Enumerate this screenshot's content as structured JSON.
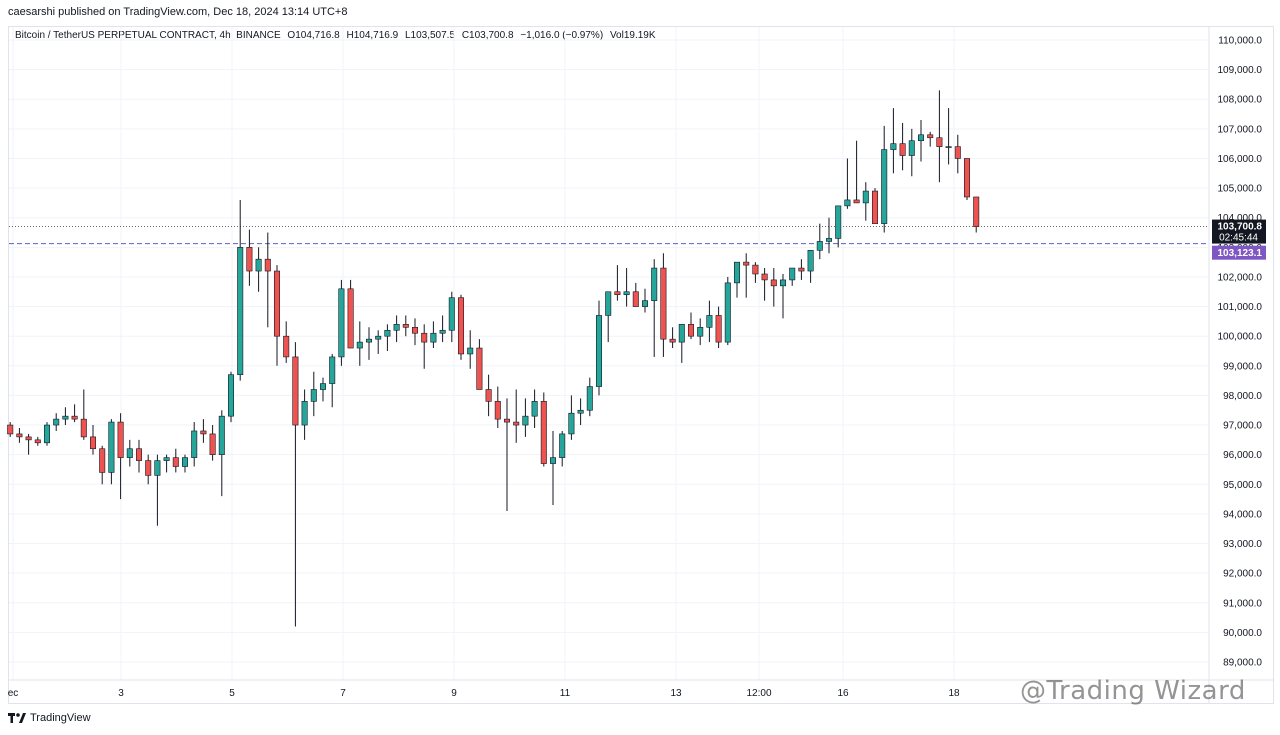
{
  "credit": "caesarshi published on TradingView.com, Dec 18, 2024 13:14 UTC+8",
  "header": {
    "symbol": "Bitcoin / TetherUS PERPETUAL CONTRACT, 4h, BINANCE",
    "open": "O104,716.8",
    "high": "H104,716.9",
    "low": "L103,507.5",
    "close": "C103,700.8",
    "change": "−1,016.0 (−0.97%)",
    "volume": "Vol19.19K"
  },
  "labels": {
    "last_price": "103,700.8",
    "countdown": "02:45:44",
    "marked_price": "103,123.1"
  },
  "colors": {
    "up": "#26a69a",
    "down": "#ef5350",
    "marked_line": "#5b5fc7",
    "marked_label": "#7e57c2",
    "last_label": "#131722"
  },
  "footer": {
    "brand": "TradingView"
  },
  "watermark": "@Trading Wizard",
  "chart_data": {
    "type": "candlestick",
    "title": "Bitcoin / TetherUS PERPETUAL CONTRACT, 4h, BINANCE",
    "ylim": [
      88500,
      110500
    ],
    "y_ticks": [
      "110,000.0",
      "109,000.0",
      "108,000.0",
      "107,000.0",
      "106,000.0",
      "105,000.0",
      "104,000.0",
      "103,000.0",
      "102,000.0",
      "101,000.0",
      "100,000.0",
      "99,000.0",
      "98,000.0",
      "97,000.0",
      "96,000.0",
      "95,000.0",
      "94,000.0",
      "93,000.0",
      "92,000.0",
      "91,000.0",
      "90,000.0",
      "89,000.0"
    ],
    "x_ticks": [
      "ec",
      "3",
      "5",
      "7",
      "9",
      "11",
      "13",
      "12:00",
      "16",
      "18"
    ],
    "last_price": 103700.8,
    "marked_price": 103123.1,
    "grid": true,
    "candles": [
      [
        97000,
        97100,
        96600,
        96700
      ],
      [
        96700,
        96900,
        96400,
        96600
      ],
      [
        96600,
        96700,
        96000,
        96500
      ],
      [
        96500,
        96600,
        96300,
        96400
      ],
      [
        96400,
        97100,
        96300,
        97000
      ],
      [
        97000,
        97400,
        96800,
        97200
      ],
      [
        97200,
        97600,
        97000,
        97300
      ],
      [
        97300,
        97700,
        97100,
        97200
      ],
      [
        97200,
        98200,
        96500,
        96600
      ],
      [
        96600,
        97000,
        96000,
        96200
      ],
      [
        96200,
        96300,
        95000,
        95400
      ],
      [
        95400,
        97200,
        95000,
        97100
      ],
      [
        97100,
        97400,
        94500,
        95900
      ],
      [
        95900,
        96500,
        95600,
        96200
      ],
      [
        96200,
        96500,
        95400,
        95800
      ],
      [
        95800,
        96000,
        95000,
        95300
      ],
      [
        95300,
        96000,
        93600,
        95800
      ],
      [
        95800,
        96000,
        95400,
        95900
      ],
      [
        95900,
        96200,
        95400,
        95600
      ],
      [
        95600,
        96000,
        95400,
        95900
      ],
      [
        95900,
        97100,
        95600,
        96800
      ],
      [
        96800,
        97200,
        96400,
        96700
      ],
      [
        96700,
        97000,
        95800,
        96000
      ],
      [
        96000,
        97500,
        94600,
        97300
      ],
      [
        97300,
        98800,
        97100,
        98700
      ],
      [
        98700,
        104600,
        98500,
        103000
      ],
      [
        103000,
        103600,
        101700,
        102200
      ],
      [
        102200,
        103000,
        101500,
        102600
      ],
      [
        102600,
        103500,
        100300,
        102200
      ],
      [
        102200,
        102400,
        99000,
        100000
      ],
      [
        100000,
        100500,
        99100,
        99300
      ],
      [
        99300,
        99800,
        90200,
        97000
      ],
      [
        97000,
        98200,
        96500,
        97800
      ],
      [
        97800,
        98800,
        97300,
        98200
      ],
      [
        98200,
        98600,
        97800,
        98400
      ],
      [
        98400,
        99400,
        97600,
        99300
      ],
      [
        99300,
        101900,
        99000,
        101600
      ],
      [
        101600,
        101900,
        99600,
        99600
      ],
      [
        99600,
        100500,
        99000,
        99800
      ],
      [
        99800,
        100300,
        99200,
        99900
      ],
      [
        99900,
        100200,
        99400,
        100000
      ],
      [
        100000,
        100400,
        99500,
        100200
      ],
      [
        100200,
        100700,
        99800,
        100400
      ],
      [
        100400,
        100700,
        100000,
        100300
      ],
      [
        100300,
        100600,
        99700,
        100100
      ],
      [
        100100,
        100400,
        98900,
        99800
      ],
      [
        99800,
        100500,
        99600,
        100100
      ],
      [
        100100,
        100700,
        99800,
        100200
      ],
      [
        100200,
        101500,
        99800,
        101300
      ],
      [
        101300,
        101400,
        99200,
        99400
      ],
      [
        99400,
        100200,
        98900,
        99600
      ],
      [
        99600,
        99900,
        98200,
        98200
      ],
      [
        98200,
        98700,
        97300,
        97800
      ],
      [
        97800,
        98300,
        96900,
        97200
      ],
      [
        97200,
        97900,
        94100,
        97100
      ],
      [
        97100,
        98200,
        96400,
        97000
      ],
      [
        97000,
        97900,
        96600,
        97300
      ],
      [
        97300,
        98200,
        96900,
        97800
      ],
      [
        97800,
        98100,
        95600,
        95700
      ],
      [
        95700,
        96800,
        94300,
        95900
      ],
      [
        95900,
        96800,
        95600,
        96700
      ],
      [
        96700,
        98000,
        96500,
        97400
      ],
      [
        97400,
        97900,
        97000,
        97500
      ],
      [
        97500,
        98600,
        97300,
        98300
      ],
      [
        98300,
        101200,
        98000,
        100700
      ],
      [
        100700,
        101500,
        99800,
        101500
      ],
      [
        101500,
        102400,
        101200,
        101400
      ],
      [
        101400,
        102300,
        101000,
        101500
      ],
      [
        101500,
        101800,
        101000,
        101000
      ],
      [
        101000,
        101600,
        100800,
        101200
      ],
      [
        101200,
        102600,
        99300,
        102300
      ],
      [
        102300,
        102800,
        99300,
        99900
      ],
      [
        99900,
        100300,
        99600,
        99800
      ],
      [
        99800,
        100400,
        99100,
        100400
      ],
      [
        100400,
        100800,
        99900,
        100000
      ],
      [
        100000,
        100600,
        99700,
        100300
      ],
      [
        100300,
        101200,
        99800,
        100700
      ],
      [
        100700,
        101000,
        99600,
        99800
      ],
      [
        99800,
        102000,
        99700,
        101800
      ],
      [
        101800,
        102300,
        101300,
        102500
      ],
      [
        102500,
        102800,
        101300,
        102400
      ],
      [
        102400,
        102500,
        101800,
        102100
      ],
      [
        102100,
        102300,
        101200,
        101900
      ],
      [
        101900,
        102300,
        101000,
        101700
      ],
      [
        101700,
        102100,
        100600,
        101900
      ],
      [
        101900,
        102300,
        101700,
        102300
      ],
      [
        102300,
        102600,
        101900,
        102200
      ],
      [
        102200,
        102900,
        101800,
        102900
      ],
      [
        102900,
        103800,
        102600,
        103200
      ],
      [
        103200,
        104000,
        102800,
        103300
      ],
      [
        103300,
        104400,
        103000,
        104400
      ],
      [
        104400,
        106000,
        104300,
        104600
      ],
      [
        104600,
        106600,
        104500,
        104500
      ],
      [
        104500,
        105200,
        103900,
        104900
      ],
      [
        104900,
        105000,
        103800,
        103800
      ],
      [
        103800,
        107100,
        103500,
        106300
      ],
      [
        106300,
        107700,
        105500,
        106500
      ],
      [
        106500,
        107200,
        105600,
        106100
      ],
      [
        106100,
        107000,
        105400,
        106600
      ],
      [
        106600,
        107300,
        105900,
        106800
      ],
      [
        106800,
        106900,
        106400,
        106700
      ],
      [
        106700,
        108300,
        105200,
        106400
      ],
      [
        106400,
        107700,
        105800,
        106400
      ],
      [
        106400,
        106800,
        105500,
        106000
      ],
      [
        106000,
        106000,
        104600,
        104700
      ],
      [
        104700,
        104700,
        103500,
        103700
      ]
    ]
  }
}
